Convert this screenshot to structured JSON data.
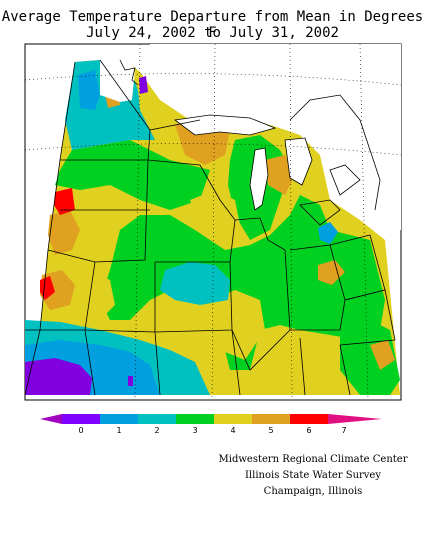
{
  "title": {
    "line1": "Average Temperature Departure from Mean in Degrees F",
    "line2": "July 24, 2002 to July 31, 2002"
  },
  "legend": {
    "ticks": [
      "0",
      "1",
      "2",
      "3",
      "4",
      "5",
      "6",
      "7"
    ],
    "colors": [
      "#8000ff",
      "#00a0e0",
      "#00c0c0",
      "#00d020",
      "#e0d020",
      "#e0a020",
      "#ff0000",
      "#e01080"
    ],
    "under_color": "#a000c0",
    "over_color": "#e01080"
  },
  "map": {
    "land_colors": {
      "purple": "#8000e0",
      "blue": "#00a0e0",
      "cyan": "#00c0c0",
      "green": "#00d020",
      "yellow": "#e0d020",
      "orange": "#e0a020",
      "red": "#ff0000"
    }
  },
  "credits": {
    "line1": "Midwestern Regional Climate Center",
    "line2": "Illinois State Water Survey",
    "line3": "Champaign, Illinois"
  }
}
